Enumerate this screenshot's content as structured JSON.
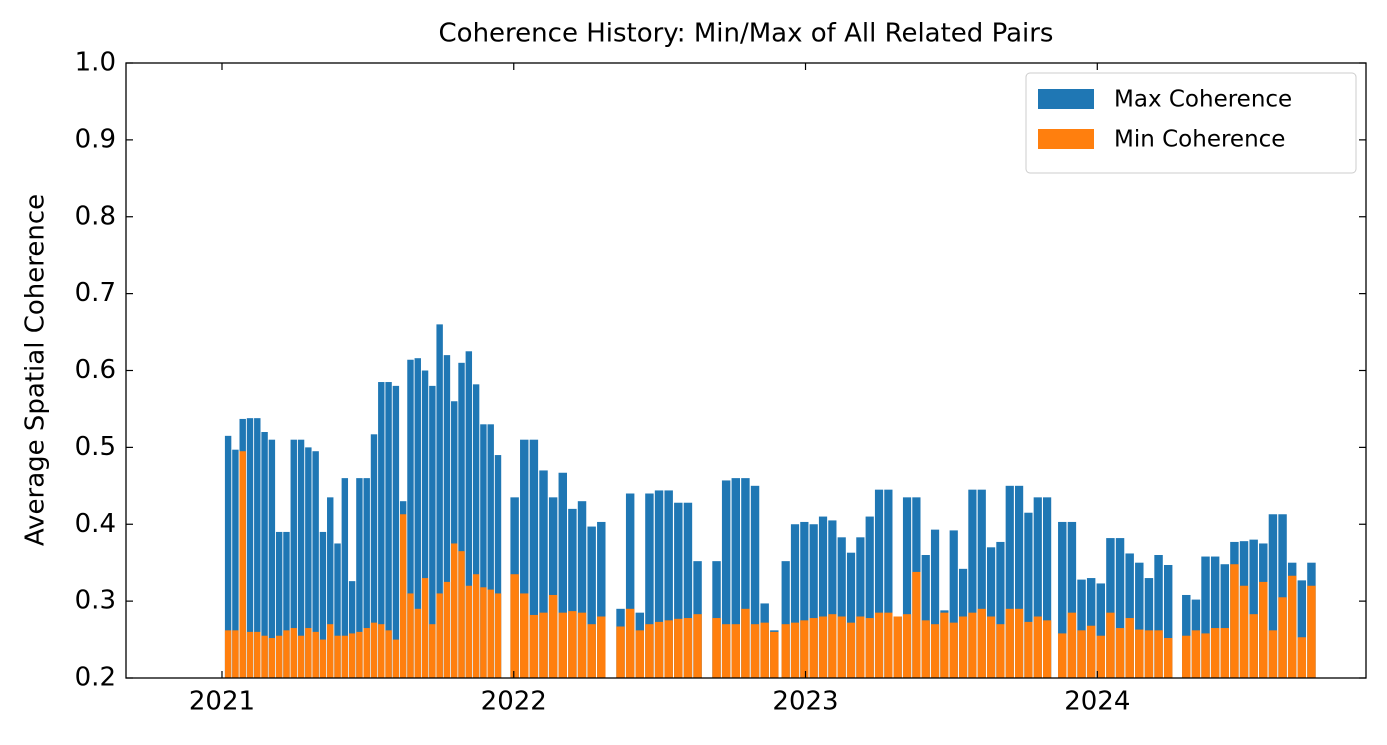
{
  "chart_data": {
    "type": "bar",
    "title": "Coherence History: Min/Max of All Related Pairs",
    "y_label": "Average Spatial Coherence",
    "x": [
      2021.021,
      2021.046,
      2021.071,
      2021.096,
      2021.121,
      2021.146,
      2021.171,
      2021.196,
      2021.221,
      2021.246,
      2021.271,
      2021.296,
      2021.321,
      2021.346,
      2021.371,
      2021.396,
      2021.421,
      2021.446,
      2021.471,
      2021.496,
      2021.521,
      2021.546,
      2021.571,
      2021.596,
      2021.621,
      2021.646,
      2021.671,
      2021.696,
      2021.721,
      2021.746,
      2021.771,
      2021.796,
      2021.821,
      2021.846,
      2021.871,
      2021.896,
      2021.921,
      2021.946,
      2022.003,
      2022.036,
      2022.069,
      2022.102,
      2022.135,
      2022.168,
      2022.201,
      2022.234,
      2022.267,
      2022.3,
      2022.366,
      2022.399,
      2022.432,
      2022.465,
      2022.498,
      2022.531,
      2022.564,
      2022.597,
      2022.63,
      2022.695,
      2022.728,
      2022.761,
      2022.794,
      2022.827,
      2022.86,
      2022.893,
      2022.932,
      2022.964,
      2022.996,
      2023.028,
      2023.06,
      2023.092,
      2023.124,
      2023.156,
      2023.188,
      2023.22,
      2023.252,
      2023.284,
      2023.316,
      2023.348,
      2023.38,
      2023.412,
      2023.444,
      2023.476,
      2023.508,
      2023.54,
      2023.572,
      2023.604,
      2023.636,
      2023.668,
      2023.7,
      2023.732,
      2023.764,
      2023.796,
      2023.828,
      2023.88,
      2023.913,
      2023.946,
      2023.979,
      2024.012,
      2024.045,
      2024.078,
      2024.111,
      2024.144,
      2024.177,
      2024.21,
      2024.243,
      2024.305,
      2024.338,
      2024.371,
      2024.404,
      2024.437,
      2024.47,
      2024.503,
      2024.536,
      2024.569,
      2024.602,
      2024.635,
      2024.668,
      2024.701,
      2024.734
    ],
    "series": [
      {
        "name": "Max Coherence",
        "color": "#1f77b4",
        "values": [
          0.515,
          0.497,
          0.537,
          0.538,
          0.538,
          0.52,
          0.51,
          0.39,
          0.39,
          0.51,
          0.51,
          0.5,
          0.495,
          0.39,
          0.435,
          0.375,
          0.46,
          0.326,
          0.46,
          0.46,
          0.517,
          0.585,
          0.585,
          0.58,
          0.43,
          0.614,
          0.616,
          0.6,
          0.58,
          0.66,
          0.62,
          0.56,
          0.61,
          0.625,
          0.582,
          0.53,
          0.53,
          0.49,
          0.435,
          0.51,
          0.51,
          0.47,
          0.435,
          0.467,
          0.42,
          0.43,
          0.397,
          0.403,
          0.29,
          0.44,
          0.285,
          0.44,
          0.444,
          0.444,
          0.428,
          0.428,
          0.352,
          0.352,
          0.457,
          0.46,
          0.46,
          0.45,
          0.297,
          0.262,
          0.352,
          0.4,
          0.403,
          0.4,
          0.41,
          0.405,
          0.383,
          0.363,
          0.383,
          0.41,
          0.445,
          0.445,
          0.28,
          0.435,
          0.435,
          0.36,
          0.393,
          0.288,
          0.392,
          0.342,
          0.445,
          0.445,
          0.37,
          0.377,
          0.45,
          0.45,
          0.415,
          0.435,
          0.435,
          0.403,
          0.403,
          0.328,
          0.33,
          0.323,
          0.382,
          0.382,
          0.362,
          0.35,
          0.33,
          0.36,
          0.347,
          0.308,
          0.302,
          0.358,
          0.358,
          0.348,
          0.377,
          0.378,
          0.38,
          0.375,
          0.413,
          0.413,
          0.35,
          0.327,
          0.35
        ]
      },
      {
        "name": "Min Coherence",
        "color": "#ff7f0e",
        "values": [
          0.262,
          0.262,
          0.495,
          0.26,
          0.26,
          0.255,
          0.252,
          0.255,
          0.262,
          0.265,
          0.255,
          0.265,
          0.26,
          0.25,
          0.27,
          0.255,
          0.255,
          0.258,
          0.26,
          0.265,
          0.272,
          0.27,
          0.262,
          0.25,
          0.413,
          0.31,
          0.29,
          0.33,
          0.27,
          0.31,
          0.325,
          0.375,
          0.365,
          0.32,
          0.335,
          0.318,
          0.315,
          0.31,
          0.335,
          0.31,
          0.282,
          0.285,
          0.308,
          0.285,
          0.287,
          0.285,
          0.27,
          0.28,
          0.267,
          0.29,
          0.262,
          0.27,
          0.273,
          0.275,
          0.277,
          0.278,
          0.283,
          0.278,
          0.27,
          0.27,
          0.29,
          0.27,
          0.272,
          0.26,
          0.27,
          0.272,
          0.275,
          0.278,
          0.28,
          0.283,
          0.28,
          0.272,
          0.28,
          0.278,
          0.285,
          0.285,
          0.28,
          0.283,
          0.338,
          0.275,
          0.27,
          0.285,
          0.272,
          0.28,
          0.285,
          0.29,
          0.28,
          0.27,
          0.29,
          0.29,
          0.273,
          0.28,
          0.275,
          0.258,
          0.285,
          0.262,
          0.268,
          0.255,
          0.285,
          0.265,
          0.278,
          0.263,
          0.262,
          0.262,
          0.252,
          0.255,
          0.262,
          0.258,
          0.265,
          0.265,
          0.348,
          0.32,
          0.283,
          0.325,
          0.262,
          0.305,
          0.333,
          0.253,
          0.32
        ]
      }
    ],
    "xlim": [
      2020.671,
      2024.921
    ],
    "xticks": [
      2021,
      2022,
      2023,
      2024
    ],
    "ylim": [
      0.2,
      1.0
    ],
    "yticks": [
      0.2,
      0.3,
      0.4,
      0.5,
      0.6,
      0.7,
      0.8,
      0.9,
      {
        "value": 1.0,
        "label": "1.0"
      }
    ],
    "legend": "upper right",
    "grid": false
  }
}
